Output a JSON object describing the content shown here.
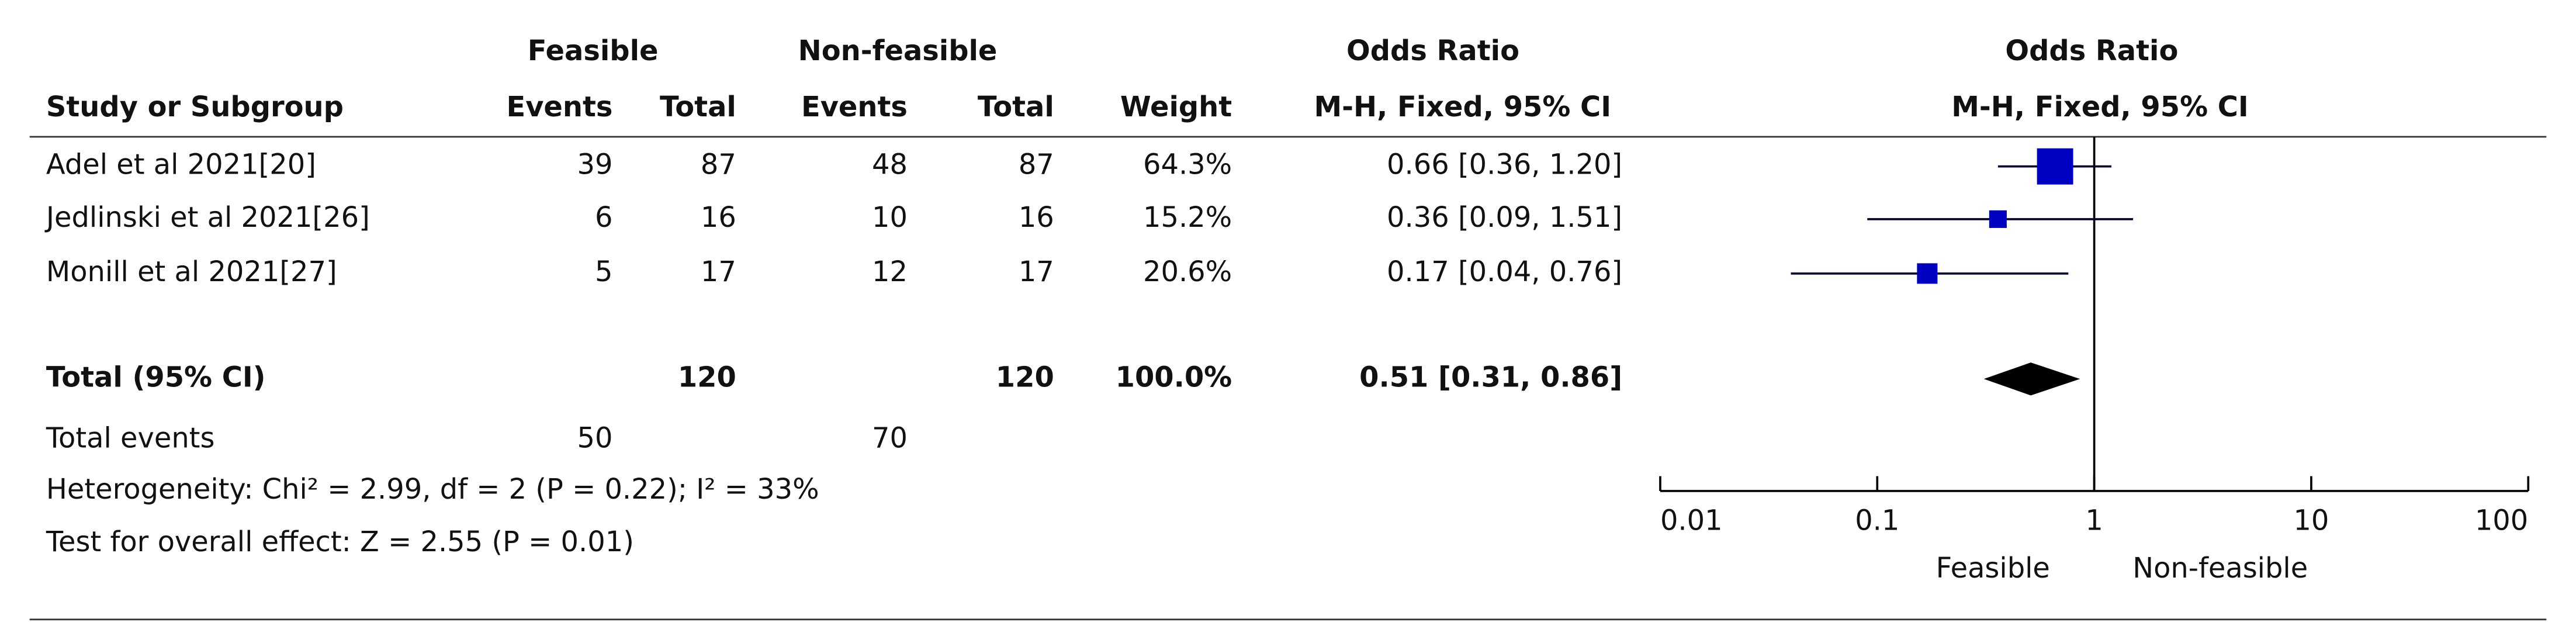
{
  "chart_data": {
    "type": "forest",
    "group_headers": [
      "Feasible",
      "Non-feasible",
      "Odds Ratio",
      "Odds Ratio"
    ],
    "column_headers": [
      "Study or Subgroup",
      "Events",
      "Total",
      "Events",
      "Total",
      "Weight",
      "M-H, Fixed, 95% CI",
      "M-H, Fixed, 95% CI"
    ],
    "studies": [
      {
        "name": "Adel et al 2021[20]",
        "events_1": 39,
        "total_1": 87,
        "events_2": 48,
        "total_2": 87,
        "weight": 64.3,
        "weight_label": "64.3%",
        "or": 0.66,
        "ci": [
          0.36,
          1.2
        ],
        "or_label": "0.66 [0.36, 1.20]"
      },
      {
        "name": "Jedlinski et al 2021[26]",
        "events_1": 6,
        "total_1": 16,
        "events_2": 10,
        "total_2": 16,
        "weight": 15.2,
        "weight_label": "15.2%",
        "or": 0.36,
        "ci": [
          0.09,
          1.51
        ],
        "or_label": "0.36 [0.09, 1.51]"
      },
      {
        "name": "Monill et al 2021[27]",
        "events_1": 5,
        "total_1": 17,
        "events_2": 12,
        "total_2": 17,
        "weight": 20.6,
        "weight_label": "20.6%",
        "or": 0.17,
        "ci": [
          0.04,
          0.76
        ],
        "or_label": "0.17 [0.04, 0.76]"
      }
    ],
    "total": {
      "name": "Total (95% CI)",
      "total_1": 120,
      "total_2": 120,
      "weight": 100.0,
      "weight_label": "100.0%",
      "or": 0.51,
      "ci": [
        0.31,
        0.86
      ],
      "or_label": "0.51 [0.31, 0.86]"
    },
    "total_events": {
      "name": "Total events",
      "events_1": 50,
      "events_2": 70
    },
    "heterogeneity": "Heterogeneity: Chi² = 2.99, df = 2 (P = 0.22); I² = 33%",
    "overall_effect": "Test for overall effect: Z = 2.55 (P = 0.01)",
    "log_x": true,
    "xlim": [
      0.01,
      100
    ],
    "xticks": [
      0.01,
      0.1,
      1,
      10,
      100
    ],
    "reference_line": 1,
    "axis_labels": [
      "Feasible",
      "Non-feasible"
    ],
    "square_color": "#0000c0",
    "diamond_color": "#000000"
  }
}
